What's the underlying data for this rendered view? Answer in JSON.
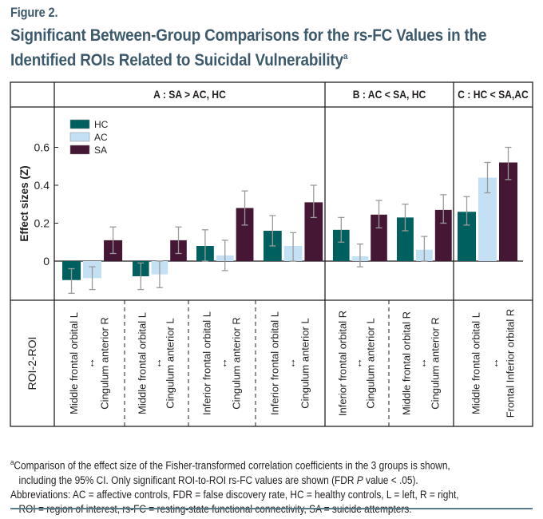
{
  "figure_label": "Figure 2.",
  "title": "Significant Between-Group Comparisons for the rs-FC Values in the Identified ROIs Related to Suicidal Vulnerability",
  "title_superscript": "a",
  "footnotes": {
    "a_mark": "a",
    "a_line1": "Comparison of the effect size of the Fisher-transformed correlation coefficients in the 3 groups is shown,",
    "a_line2_pre": "including the 95% CI. Only significant ROI-to-ROI rs-FC values are shown (FDR ",
    "a_line2_italic": "P",
    "a_line2_post": " value < .05).",
    "abbr_line1": "Abbreviations: AC = affective controls, FDR = false discovery rate, HC = healthy controls, L = left, R = right,",
    "abbr_line2": "ROI = region of interest, rs-FC = resting-state functional connectivity, SA = suicide attempters."
  },
  "chart_data": {
    "type": "bar",
    "ylabel": "Effect sizes (Z)",
    "row_label": "ROI-2-ROI",
    "ylim": [
      -0.2,
      0.72
    ],
    "yticks": [
      0,
      0.2,
      0.4,
      0.6
    ],
    "ytick_labels": [
      "0",
      "0.2",
      "0.4",
      "0.6"
    ],
    "grid": false,
    "legend_position": "top-left",
    "series_names": [
      "HC",
      "AC",
      "SA"
    ],
    "colors": {
      "HC": "#00605f",
      "AC": "#c3e0f4",
      "SA": "#461735",
      "error": "#9a9a9a"
    },
    "panels": [
      {
        "label": "A : SA > AC, HC",
        "groups": [
          0,
          1,
          2,
          3
        ]
      },
      {
        "label": "B : AC < SA, HC",
        "groups": [
          4,
          5
        ]
      },
      {
        "label": "C : HC < SA,AC",
        "groups": [
          6
        ]
      }
    ],
    "arrow_glyph": "↔",
    "groups": [
      {
        "roi1": "Middle frontal orbital L",
        "roi2": "Cingulum anterior R",
        "values": [
          -0.1,
          -0.09,
          0.11
        ],
        "ci_low": [
          -0.17,
          -0.15,
          0.04
        ],
        "ci_high": [
          -0.04,
          -0.03,
          0.18
        ]
      },
      {
        "roi1": "Middle frontal orbital L",
        "roi2": "Cingulum anterior L",
        "values": [
          -0.08,
          -0.07,
          0.11
        ],
        "ci_low": [
          -0.15,
          -0.14,
          0.04
        ],
        "ci_high": [
          -0.01,
          0.0,
          0.18
        ]
      },
      {
        "roi1": "Inferior frontal orbital L",
        "roi2": "Cingulum anterior R",
        "values": [
          0.08,
          0.03,
          0.28
        ],
        "ci_low": [
          0.0,
          -0.05,
          0.19
        ],
        "ci_high": [
          0.165,
          0.11,
          0.37
        ]
      },
      {
        "roi1": "Inferior frontal orbital L",
        "roi2": "Cingulum anterior L",
        "values": [
          0.16,
          0.08,
          0.31
        ],
        "ci_low": [
          0.08,
          0.0,
          0.23
        ],
        "ci_high": [
          0.24,
          0.15,
          0.4
        ]
      },
      {
        "roi1": "Inferior frontal orbital R",
        "roi2": "Cingulum anterior L",
        "values": [
          0.165,
          0.025,
          0.245
        ],
        "ci_low": [
          0.1,
          -0.03,
          0.175
        ],
        "ci_high": [
          0.23,
          0.09,
          0.32
        ]
      },
      {
        "roi1": "Middle frontal orbital R",
        "roi2": "Cingulum anterior R",
        "values": [
          0.23,
          0.06,
          0.27
        ],
        "ci_low": [
          0.16,
          0.0,
          0.2
        ],
        "ci_high": [
          0.3,
          0.13,
          0.35
        ]
      },
      {
        "roi1": "Middle frontal orbital L",
        "roi2": "Frontal Inferior orbital R",
        "values": [
          0.26,
          0.44,
          0.52
        ],
        "ci_low": [
          0.19,
          0.36,
          0.43
        ],
        "ci_high": [
          0.34,
          0.52,
          0.6
        ]
      }
    ]
  }
}
